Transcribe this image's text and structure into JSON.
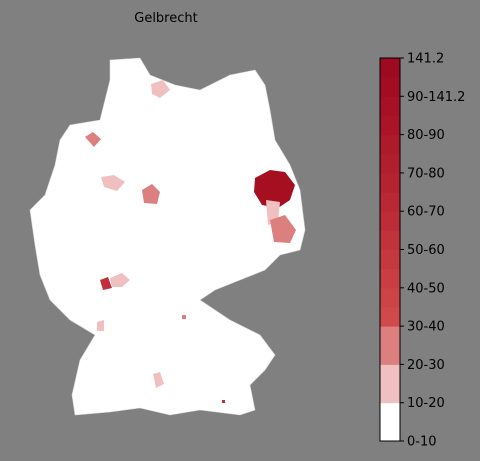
{
  "title": "Gelbrecht",
  "colorbar": {
    "labels": [
      "0-10",
      "10-20",
      "20-30",
      "30-40",
      "40-50",
      "50-60",
      "60-70",
      "70-80",
      "80-90",
      "90-141.2",
      "141.2"
    ],
    "colors": [
      "#ffffff",
      "#ffffff",
      "#f0c0c0",
      "#f0c0c0",
      "#dc7f7f",
      "#dc7f7f",
      "#d14a4b",
      "#cd4446",
      "#c93e42",
      "#c5383e",
      "#c1333a",
      "#bd2d37",
      "#b92833",
      "#b52330",
      "#b11e2d",
      "#ad1a2a",
      "#a91527",
      "#a61125",
      "#a20d22",
      "#9e0a20"
    ]
  }
}
